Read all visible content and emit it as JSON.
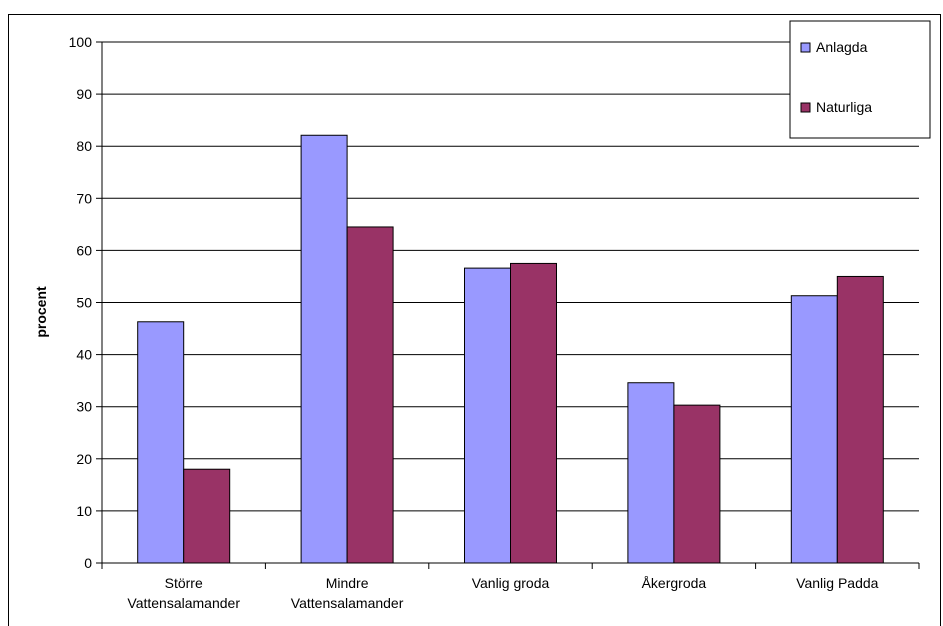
{
  "chart_data": {
    "type": "bar",
    "title": "",
    "xlabel": "",
    "ylabel": "procent",
    "ylim": [
      0,
      100
    ],
    "yticks": [
      0,
      10,
      20,
      30,
      40,
      50,
      60,
      70,
      80,
      90,
      100
    ],
    "grid": true,
    "legend_position": "top-right",
    "categories": [
      [
        "Större",
        "Vattensalamander"
      ],
      [
        "Mindre",
        "Vattensalamander"
      ],
      [
        "Vanlig groda"
      ],
      [
        "Åkergroda"
      ],
      [
        "Vanlig Padda"
      ]
    ],
    "series": [
      {
        "name": "Anlagda",
        "color": "#9999FF",
        "values": [
          46.3,
          82.1,
          56.6,
          34.6,
          51.3
        ]
      },
      {
        "name": "Naturliga",
        "color": "#993366",
        "values": [
          18.0,
          64.5,
          57.5,
          30.3,
          55.0
        ]
      }
    ]
  }
}
